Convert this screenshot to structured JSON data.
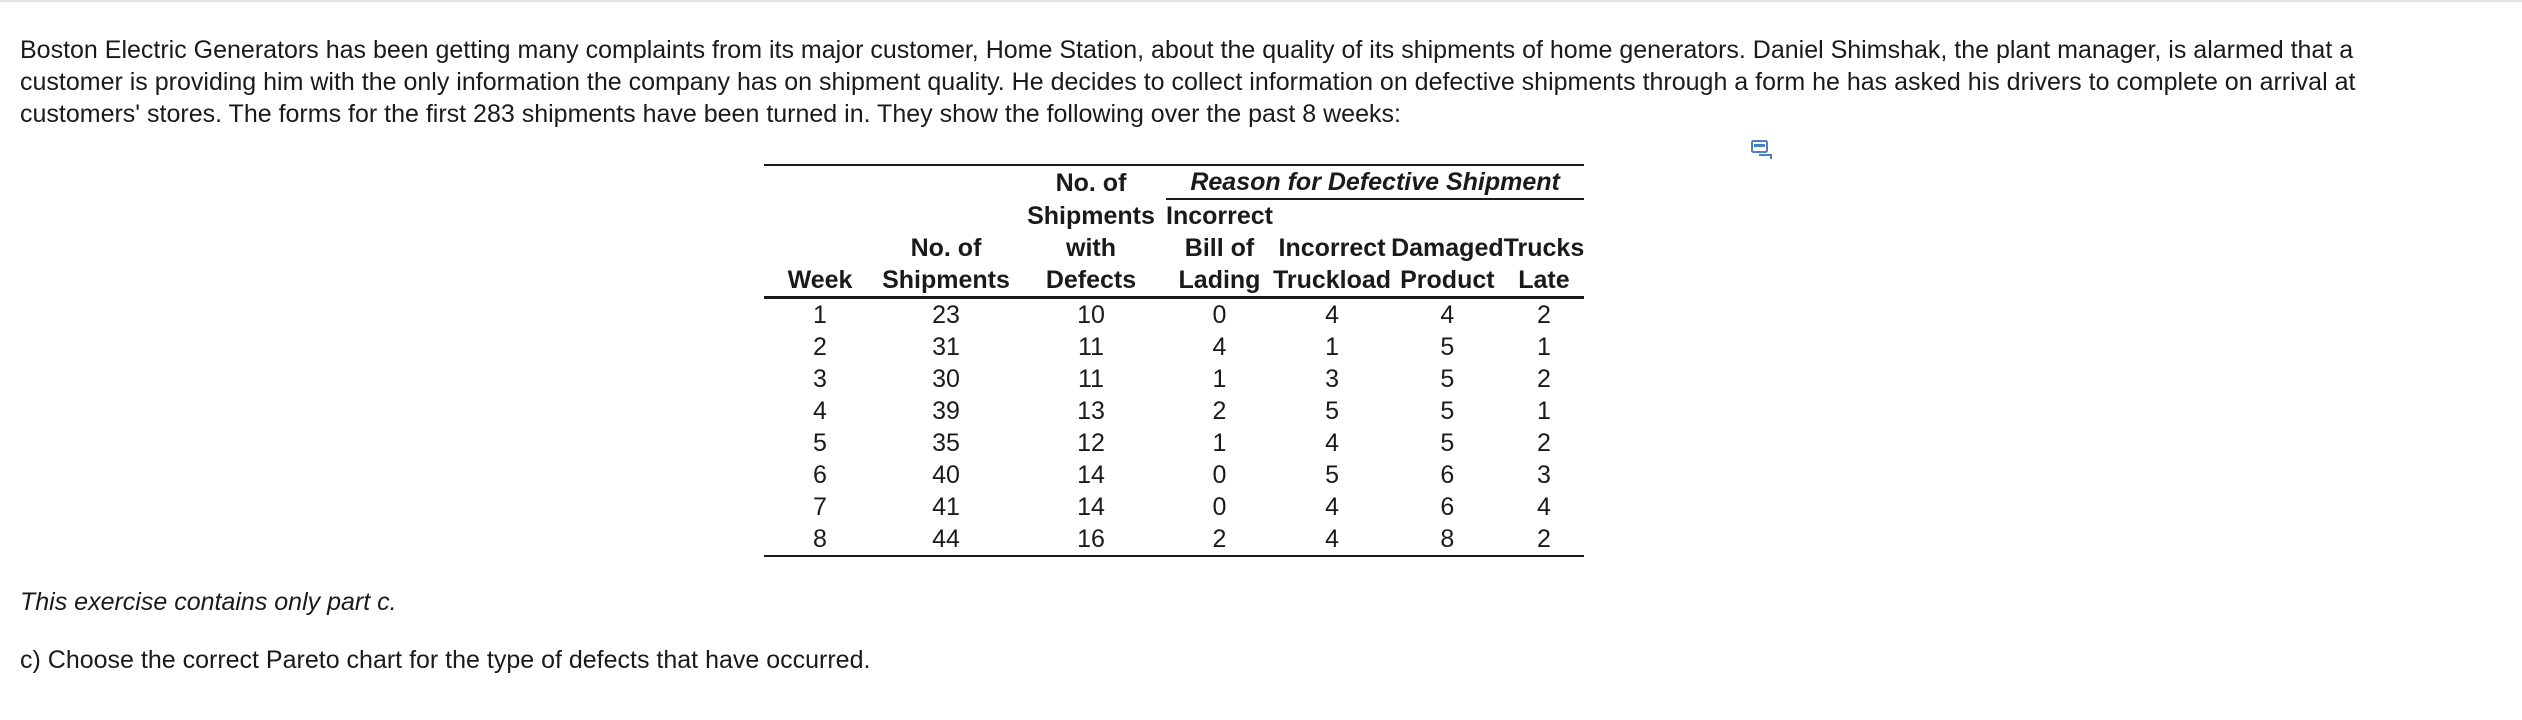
{
  "intro_lines": [
    "Boston Electric Generators has been getting many complaints from its major customer, Home Station, about the quality of its shipments of home generators. Daniel Shimshak, the plant manager, is alarmed that a",
    "customer is providing him with the only information the company has on shipment quality. He decides to collect information on defective shipments through a form he has asked his drivers to complete on arrival at",
    "customers' stores. The forms for the first 283 shipments have been turned in. They show the following over the past 8 weeks:"
  ],
  "copy_icon": "copy-table-icon",
  "table": {
    "group_header": "Reason for Defective Shipment",
    "headers": {
      "week": "Week",
      "shipments": [
        "No. of",
        "Shipments"
      ],
      "defects": [
        "No. of",
        "Shipments",
        "with",
        "Defects"
      ],
      "bill": [
        "Incorrect",
        "Bill of",
        "Lading"
      ],
      "truckload": [
        "Incorrect",
        "Truckload"
      ],
      "damaged": [
        "Damaged",
        "Product"
      ],
      "late": [
        "Trucks",
        "Late"
      ]
    },
    "rows": [
      [
        "1",
        "23",
        "10",
        "0",
        "4",
        "4",
        "2"
      ],
      [
        "2",
        "31",
        "11",
        "4",
        "1",
        "5",
        "1"
      ],
      [
        "3",
        "30",
        "11",
        "1",
        "3",
        "5",
        "2"
      ],
      [
        "4",
        "39",
        "13",
        "2",
        "5",
        "5",
        "1"
      ],
      [
        "5",
        "35",
        "12",
        "1",
        "4",
        "5",
        "2"
      ],
      [
        "6",
        "40",
        "14",
        "0",
        "5",
        "6",
        "3"
      ],
      [
        "7",
        "41",
        "14",
        "0",
        "4",
        "6",
        "4"
      ],
      [
        "8",
        "44",
        "16",
        "2",
        "4",
        "8",
        "2"
      ]
    ]
  },
  "note": "This exercise contains only part c.",
  "question": "c) Choose the correct Pareto chart for the type of defects that have occurred."
}
